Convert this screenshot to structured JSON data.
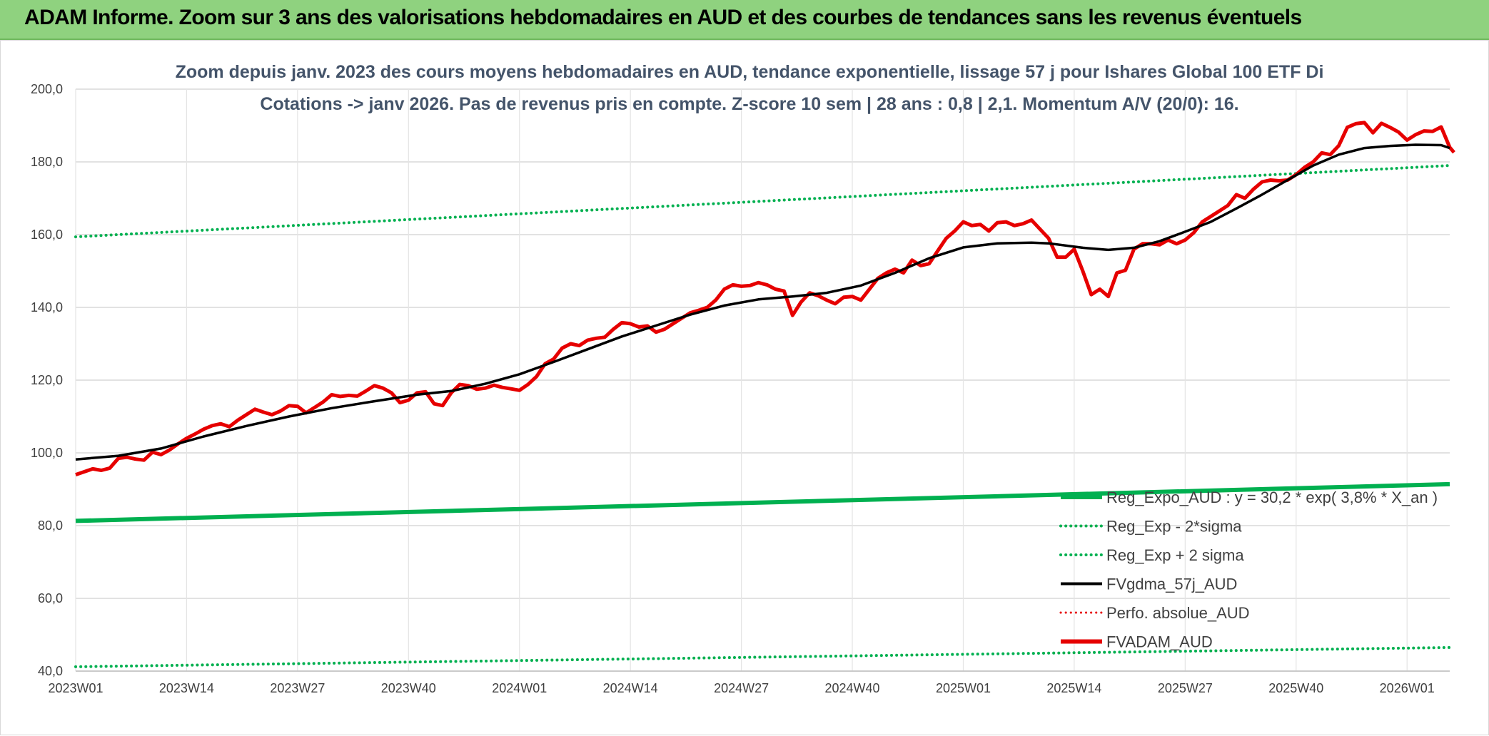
{
  "banner": {
    "title": "ADAM Informe. Zoom sur 3 ans des valorisations hebdomadaires en AUD et des courbes de tendances sans les revenus éventuels"
  },
  "colors": {
    "banner": "#8fd27f",
    "red": "#e60000",
    "black": "#000000",
    "green": "#00b050",
    "dotted_green": "#00b050",
    "grid": "#d9d9d9",
    "title": "#44546a"
  },
  "chart_data": {
    "type": "line",
    "title_lines": [
      "Zoom depuis janv. 2023 des cours moyens hebdomadaires en AUD, tendance exponentielle, lissage 57 j pour Ishares Global 100 ETF Di",
      "Cotations -> janv 2026. Pas de revenus pris en compte. Z-score 10 sem | 28 ans : 0,8 | 2,1. Momentum A/V (20/0): 16."
    ],
    "ylim": [
      40,
      200
    ],
    "y_ticks": [
      "40,0",
      "60,0",
      "80,0",
      "100,0",
      "120,0",
      "140,0",
      "160,0",
      "180,0",
      "200,0"
    ],
    "x_ticks": [
      "2023W01",
      "2023W14",
      "2023W27",
      "2023W40",
      "2024W01",
      "2024W14",
      "2024W27",
      "2024W40",
      "2025W01",
      "2025W14",
      "2025W27",
      "2025W40",
      "2026W01"
    ],
    "x_tick_positions": [
      0,
      13,
      26,
      39,
      52,
      65,
      78,
      91,
      104,
      117,
      130,
      143,
      156
    ],
    "x_range": [
      0,
      161
    ],
    "legend": [
      {
        "label": "Reg_Expo_AUD : y = 30,2 * exp( 3,8% * X_an )",
        "color": "#00b050",
        "style": "solid",
        "width": 6
      },
      {
        "label": "Reg_Exp - 2*sigma",
        "color": "#00b050",
        "style": "dotted",
        "width": 4
      },
      {
        "label": "Reg_Exp + 2 sigma",
        "color": "#00b050",
        "style": "dotted",
        "width": 4
      },
      {
        "label": "FVgdma_57j_AUD",
        "color": "#000000",
        "style": "solid",
        "width": 4
      },
      {
        "label": "Perfo. absolue_AUD",
        "color": "#e60000",
        "style": "dotted",
        "width": 3
      },
      {
        "label": "FVADAM_AUD",
        "color": "#e60000",
        "style": "solid",
        "width": 6
      }
    ],
    "series": [
      {
        "name": "Reg_Expo_AUD",
        "linear": true,
        "start": 81.3,
        "end": 91.4
      },
      {
        "name": "Reg_Exp - 2*sigma",
        "linear": true,
        "start": 41.2,
        "end": 46.5
      },
      {
        "name": "Reg_Exp + 2 sigma",
        "linear": true,
        "start": 159.4,
        "end": 179.0
      },
      {
        "name": "FVgdma_57j_AUD",
        "points": [
          [
            0,
            98.2
          ],
          [
            5,
            99.2
          ],
          [
            10,
            101.2
          ],
          [
            15,
            104.5
          ],
          [
            20,
            107.4
          ],
          [
            25,
            110.0
          ],
          [
            30,
            112.3
          ],
          [
            35,
            114.2
          ],
          [
            40,
            116.0
          ],
          [
            44,
            117.0
          ],
          [
            48,
            119.0
          ],
          [
            52,
            121.6
          ],
          [
            56,
            125.0
          ],
          [
            60,
            128.5
          ],
          [
            64,
            132.0
          ],
          [
            68,
            135.0
          ],
          [
            72,
            138.0
          ],
          [
            76,
            140.5
          ],
          [
            80,
            142.2
          ],
          [
            84,
            143.0
          ],
          [
            88,
            144.0
          ],
          [
            92,
            146.0
          ],
          [
            96,
            149.5
          ],
          [
            100,
            153.5
          ],
          [
            104,
            156.5
          ],
          [
            108,
            157.6
          ],
          [
            112,
            157.8
          ],
          [
            114,
            157.6
          ],
          [
            118,
            156.4
          ],
          [
            121,
            155.8
          ],
          [
            124,
            156.4
          ],
          [
            127,
            158.2
          ],
          [
            130,
            160.8
          ],
          [
            133,
            163.5
          ],
          [
            136,
            167.2
          ],
          [
            139,
            171.0
          ],
          [
            142,
            175.0
          ],
          [
            145,
            179.0
          ],
          [
            148,
            182.0
          ],
          [
            151,
            183.8
          ],
          [
            154,
            184.4
          ],
          [
            157,
            184.7
          ],
          [
            160,
            184.6
          ],
          [
            161,
            183.8
          ]
        ]
      },
      {
        "name": "FVADAM_AUD",
        "points": [
          [
            0,
            94.0
          ],
          [
            1,
            94.8
          ],
          [
            2,
            95.6
          ],
          [
            3,
            95.2
          ],
          [
            4,
            95.8
          ],
          [
            5,
            98.5
          ],
          [
            6,
            98.8
          ],
          [
            7,
            98.3
          ],
          [
            8,
            98.0
          ],
          [
            9,
            100.2
          ],
          [
            10,
            99.5
          ],
          [
            11,
            100.8
          ],
          [
            12,
            102.5
          ],
          [
            13,
            104.0
          ],
          [
            14,
            105.2
          ],
          [
            15,
            106.5
          ],
          [
            16,
            107.5
          ],
          [
            17,
            108.0
          ],
          [
            18,
            107.2
          ],
          [
            19,
            109.0
          ],
          [
            20,
            110.5
          ],
          [
            21,
            112.0
          ],
          [
            22,
            111.2
          ],
          [
            23,
            110.5
          ],
          [
            24,
            111.5
          ],
          [
            25,
            113.0
          ],
          [
            26,
            112.8
          ],
          [
            27,
            111.0
          ],
          [
            28,
            112.5
          ],
          [
            29,
            114.0
          ],
          [
            30,
            116.0
          ],
          [
            31,
            115.5
          ],
          [
            32,
            115.8
          ],
          [
            33,
            115.6
          ],
          [
            34,
            117.0
          ],
          [
            35,
            118.5
          ],
          [
            36,
            117.8
          ],
          [
            37,
            116.5
          ],
          [
            38,
            113.8
          ],
          [
            39,
            114.5
          ],
          [
            40,
            116.5
          ],
          [
            41,
            116.8
          ],
          [
            42,
            113.5
          ],
          [
            43,
            113.0
          ],
          [
            44,
            116.5
          ],
          [
            45,
            118.8
          ],
          [
            46,
            118.5
          ],
          [
            47,
            117.5
          ],
          [
            48,
            117.8
          ],
          [
            49,
            118.6
          ],
          [
            50,
            118.0
          ],
          [
            51,
            117.6
          ],
          [
            52,
            117.2
          ],
          [
            53,
            118.8
          ],
          [
            54,
            121.0
          ],
          [
            55,
            124.5
          ],
          [
            56,
            125.8
          ],
          [
            57,
            128.8
          ],
          [
            58,
            130.0
          ],
          [
            59,
            129.5
          ],
          [
            60,
            131.0
          ],
          [
            61,
            131.5
          ],
          [
            62,
            131.8
          ],
          [
            63,
            134.0
          ],
          [
            64,
            135.8
          ],
          [
            65,
            135.5
          ],
          [
            66,
            134.6
          ],
          [
            67,
            134.9
          ],
          [
            68,
            133.2
          ],
          [
            69,
            134.0
          ],
          [
            70,
            135.5
          ],
          [
            71,
            137.0
          ],
          [
            72,
            138.5
          ],
          [
            73,
            139.2
          ],
          [
            74,
            140.0
          ],
          [
            75,
            142.0
          ],
          [
            76,
            145.0
          ],
          [
            77,
            146.2
          ],
          [
            78,
            145.8
          ],
          [
            79,
            146.0
          ],
          [
            80,
            146.8
          ],
          [
            81,
            146.2
          ],
          [
            82,
            145.0
          ],
          [
            83,
            144.5
          ],
          [
            84,
            137.8
          ],
          [
            85,
            141.5
          ],
          [
            86,
            144.0
          ],
          [
            87,
            143.2
          ],
          [
            88,
            142.0
          ],
          [
            89,
            141.0
          ],
          [
            90,
            142.8
          ],
          [
            91,
            143.0
          ],
          [
            92,
            142.0
          ],
          [
            93,
            145.0
          ],
          [
            94,
            148.0
          ],
          [
            95,
            149.5
          ],
          [
            96,
            150.5
          ],
          [
            97,
            149.5
          ],
          [
            98,
            153.0
          ],
          [
            99,
            151.5
          ],
          [
            100,
            152.0
          ],
          [
            101,
            155.5
          ],
          [
            102,
            159.0
          ],
          [
            103,
            161.0
          ],
          [
            104,
            163.5
          ],
          [
            105,
            162.5
          ],
          [
            106,
            162.8
          ],
          [
            107,
            161.0
          ],
          [
            108,
            163.3
          ],
          [
            109,
            163.5
          ],
          [
            110,
            162.5
          ],
          [
            111,
            163.0
          ],
          [
            112,
            164.0
          ],
          [
            113,
            161.5
          ],
          [
            114,
            159.0
          ],
          [
            115,
            153.8
          ],
          [
            116,
            153.8
          ],
          [
            117,
            156.0
          ],
          [
            118,
            150.0
          ],
          [
            119,
            143.5
          ],
          [
            120,
            145.0
          ],
          [
            121,
            143.0
          ],
          [
            122,
            149.5
          ],
          [
            123,
            150.2
          ],
          [
            124,
            156.0
          ],
          [
            125,
            157.5
          ],
          [
            126,
            157.5
          ],
          [
            127,
            157.2
          ],
          [
            128,
            158.5
          ],
          [
            129,
            157.5
          ],
          [
            130,
            158.5
          ],
          [
            131,
            160.5
          ],
          [
            132,
            163.5
          ],
          [
            133,
            165.0
          ],
          [
            134,
            166.5
          ],
          [
            135,
            168.0
          ],
          [
            136,
            171.0
          ],
          [
            137,
            170.0
          ],
          [
            138,
            172.5
          ],
          [
            139,
            174.5
          ],
          [
            140,
            175.0
          ],
          [
            141,
            174.8
          ],
          [
            142,
            175.0
          ],
          [
            143,
            176.5
          ],
          [
            144,
            178.5
          ],
          [
            145,
            180.0
          ],
          [
            146,
            182.5
          ],
          [
            147,
            182.0
          ],
          [
            148,
            184.5
          ],
          [
            149,
            189.5
          ],
          [
            150,
            190.5
          ],
          [
            151,
            190.8
          ],
          [
            152,
            188.0
          ],
          [
            153,
            190.6
          ],
          [
            154,
            189.5
          ],
          [
            155,
            188.2
          ],
          [
            156,
            186.0
          ],
          [
            157,
            187.5
          ],
          [
            158,
            188.5
          ],
          [
            159,
            188.4
          ],
          [
            160,
            189.6
          ],
          [
            161,
            184.0
          ],
          [
            161.5,
            182.6
          ]
        ]
      }
    ]
  }
}
